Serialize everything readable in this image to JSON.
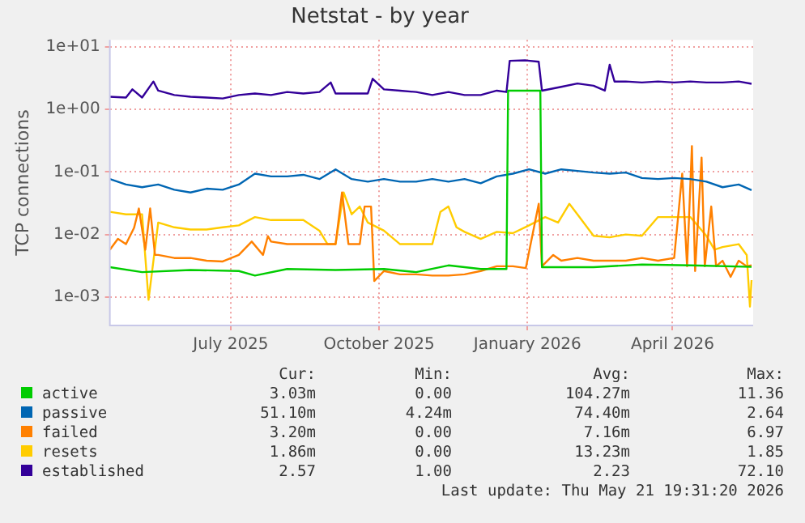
{
  "chart_data": {
    "type": "line",
    "title": "Netstat - by year",
    "ylabel": "TCP connections",
    "log": "y",
    "grid": true,
    "legend": "bottom",
    "marker": "none",
    "line_style": "solid",
    "xlim": [
      "2025-04-17",
      "2026-05-21"
    ],
    "xticks": [
      {
        "value": "2025-07-01",
        "label": "July 2025"
      },
      {
        "value": "2025-10-01",
        "label": "October 2025"
      },
      {
        "value": "2026-01-01",
        "label": "January 2026"
      },
      {
        "value": "2026-04-01",
        "label": "April 2026"
      }
    ],
    "ylim": [
      0.00035,
      13
    ],
    "yticks": [
      {
        "value": 0.001,
        "label": "1e-03"
      },
      {
        "value": 0.01,
        "label": "1e-02"
      },
      {
        "value": 0.1,
        "label": "1e-01"
      },
      {
        "value": 1,
        "label": "1e+00"
      },
      {
        "value": 10,
        "label": "1e+01"
      }
    ],
    "x": [
      "2025-04-17",
      "2025-04-27",
      "2025-05-07",
      "2025-05-17",
      "2025-05-27",
      "2025-06-06",
      "2025-06-16",
      "2025-06-26",
      "2025-07-06",
      "2025-07-16",
      "2025-07-26",
      "2025-08-05",
      "2025-08-15",
      "2025-08-25",
      "2025-09-04",
      "2025-09-14",
      "2025-09-24",
      "2025-10-04",
      "2025-10-14",
      "2025-10-24",
      "2025-11-03",
      "2025-11-13",
      "2025-11-23",
      "2025-12-03",
      "2025-12-13",
      "2025-12-23",
      "2026-01-02",
      "2026-01-12",
      "2026-01-22",
      "2026-02-01",
      "2026-02-11",
      "2026-02-21",
      "2026-03-03",
      "2026-03-13",
      "2026-03-23",
      "2026-04-02",
      "2026-04-12",
      "2026-04-22",
      "2026-05-02",
      "2026-05-12",
      "2026-05-20"
    ],
    "series": [
      {
        "name": "active",
        "color": "#00cc00",
        "x": [
          "2025-04-17",
          "2025-05-07",
          "2025-06-06",
          "2025-07-06",
          "2025-07-16",
          "2025-08-05",
          "2025-09-04",
          "2025-10-04",
          "2025-10-24",
          "2025-11-13",
          "2025-12-03",
          "2025-12-19",
          "2025-12-20",
          "2026-01-09",
          "2026-01-10",
          "2026-02-11",
          "2026-03-13",
          "2026-04-12",
          "2026-05-20"
        ],
        "values": [
          0.003,
          0.0025,
          0.0027,
          0.0026,
          0.0022,
          0.0028,
          0.0027,
          0.0028,
          0.0025,
          0.0032,
          0.0028,
          0.0028,
          2.0,
          2.0,
          0.003,
          0.003,
          0.0033,
          0.0032,
          0.00303
        ]
      },
      {
        "name": "passive",
        "color": "#0066b3",
        "values": [
          0.077,
          0.063,
          0.057,
          0.063,
          0.052,
          0.047,
          0.054,
          0.052,
          0.063,
          0.094,
          0.085,
          0.085,
          0.09,
          0.077,
          0.11,
          0.077,
          0.07,
          0.077,
          0.07,
          0.07,
          0.077,
          0.07,
          0.077,
          0.066,
          0.085,
          0.094,
          0.11,
          0.094,
          0.11,
          0.104,
          0.098,
          0.094,
          0.098,
          0.08,
          0.077,
          0.08,
          0.077,
          0.07,
          0.057,
          0.063,
          0.0511
        ]
      },
      {
        "name": "failed",
        "color": "#ff8000",
        "x": [
          "2025-04-17",
          "2025-04-22",
          "2025-04-27",
          "2025-05-02",
          "2025-05-05",
          "2025-05-09",
          "2025-05-12",
          "2025-05-15",
          "2025-05-17",
          "2025-05-27",
          "2025-06-06",
          "2025-06-16",
          "2025-06-26",
          "2025-07-06",
          "2025-07-14",
          "2025-07-21",
          "2025-07-24",
          "2025-07-26",
          "2025-08-05",
          "2025-08-15",
          "2025-08-25",
          "2025-09-04",
          "2025-09-08",
          "2025-09-12",
          "2025-09-19",
          "2025-09-22",
          "2025-09-26",
          "2025-09-28",
          "2025-10-04",
          "2025-10-14",
          "2025-10-24",
          "2025-11-03",
          "2025-11-13",
          "2025-11-23",
          "2025-12-03",
          "2025-12-13",
          "2025-12-23",
          "2025-12-31",
          "2026-01-08",
          "2026-01-10",
          "2026-01-17",
          "2026-01-22",
          "2026-02-01",
          "2026-02-11",
          "2026-02-21",
          "2026-03-03",
          "2026-03-13",
          "2026-03-23",
          "2026-04-02",
          "2026-04-07",
          "2026-04-10",
          "2026-04-13",
          "2026-04-15",
          "2026-04-19",
          "2026-04-21",
          "2026-04-25",
          "2026-04-28",
          "2026-05-02",
          "2026-05-07",
          "2026-05-12",
          "2026-05-17",
          "2026-05-20"
        ],
        "values": [
          0.0057,
          0.0085,
          0.007,
          0.0127,
          0.026,
          0.0057,
          0.026,
          0.0047,
          0.0047,
          0.0042,
          0.0042,
          0.0038,
          0.0037,
          0.0047,
          0.0077,
          0.0047,
          0.0094,
          0.0077,
          0.007,
          0.007,
          0.007,
          0.007,
          0.047,
          0.007,
          0.007,
          0.028,
          0.028,
          0.0018,
          0.0026,
          0.0023,
          0.0023,
          0.0022,
          0.0022,
          0.0023,
          0.0026,
          0.0031,
          0.0031,
          0.0029,
          0.031,
          0.0031,
          0.0047,
          0.0038,
          0.0042,
          0.0038,
          0.0038,
          0.0038,
          0.0042,
          0.0038,
          0.0042,
          0.094,
          0.0031,
          0.26,
          0.0026,
          0.17,
          0.0031,
          0.028,
          0.0031,
          0.0038,
          0.0021,
          0.0038,
          0.0031,
          0.0032
        ]
      },
      {
        "name": "resets",
        "color": "#ffcc00",
        "x": [
          "2025-04-17",
          "2025-04-27",
          "2025-05-07",
          "2025-05-11",
          "2025-05-17",
          "2025-05-27",
          "2025-06-06",
          "2025-06-16",
          "2025-06-26",
          "2025-07-06",
          "2025-07-16",
          "2025-07-26",
          "2025-08-05",
          "2025-08-15",
          "2025-08-25",
          "2025-08-30",
          "2025-09-04",
          "2025-09-09",
          "2025-09-14",
          "2025-09-19",
          "2025-09-24",
          "2025-10-04",
          "2025-10-14",
          "2025-10-24",
          "2025-11-03",
          "2025-11-08",
          "2025-11-13",
          "2025-11-18",
          "2025-11-23",
          "2025-12-03",
          "2025-12-13",
          "2025-12-23",
          "2026-01-02",
          "2026-01-12",
          "2026-01-20",
          "2026-01-27",
          "2026-02-01",
          "2026-02-11",
          "2026-02-21",
          "2026-03-03",
          "2026-03-13",
          "2026-03-23",
          "2026-04-02",
          "2026-04-12",
          "2026-04-22",
          "2026-04-27",
          "2026-05-02",
          "2026-05-12",
          "2026-05-17",
          "2026-05-19",
          "2026-05-20"
        ],
        "values": [
          0.023,
          0.021,
          0.021,
          0.0009,
          0.0155,
          0.013,
          0.012,
          0.012,
          0.013,
          0.014,
          0.019,
          0.017,
          0.017,
          0.017,
          0.0115,
          0.007,
          0.007,
          0.047,
          0.021,
          0.028,
          0.0155,
          0.0115,
          0.007,
          0.007,
          0.007,
          0.023,
          0.028,
          0.013,
          0.011,
          0.0085,
          0.011,
          0.0105,
          0.014,
          0.019,
          0.0155,
          0.031,
          0.021,
          0.0095,
          0.009,
          0.01,
          0.0095,
          0.019,
          0.019,
          0.019,
          0.0095,
          0.0057,
          0.0063,
          0.007,
          0.0047,
          0.0007,
          0.00186
        ]
      },
      {
        "name": "established",
        "color": "#330099",
        "x": [
          "2025-04-17",
          "2025-04-27",
          "2025-05-01",
          "2025-05-07",
          "2025-05-14",
          "2025-05-17",
          "2025-05-27",
          "2025-06-06",
          "2025-06-16",
          "2025-06-26",
          "2025-07-06",
          "2025-07-16",
          "2025-07-26",
          "2025-08-05",
          "2025-08-15",
          "2025-08-25",
          "2025-09-01",
          "2025-09-04",
          "2025-09-14",
          "2025-09-24",
          "2025-09-27",
          "2025-10-04",
          "2025-10-14",
          "2025-10-24",
          "2025-11-03",
          "2025-11-13",
          "2025-11-23",
          "2025-12-03",
          "2025-12-13",
          "2025-12-19",
          "2025-12-21",
          "2025-12-31",
          "2026-01-08",
          "2026-01-10",
          "2026-01-22",
          "2026-02-01",
          "2026-02-11",
          "2026-02-18",
          "2026-02-21",
          "2026-02-24",
          "2026-03-03",
          "2026-03-13",
          "2026-03-23",
          "2026-04-02",
          "2026-04-12",
          "2026-04-22",
          "2026-05-02",
          "2026-05-12",
          "2026-05-20"
        ],
        "values": [
          1.6,
          1.55,
          2.1,
          1.55,
          2.8,
          2.0,
          1.7,
          1.6,
          1.55,
          1.5,
          1.7,
          1.8,
          1.7,
          1.9,
          1.8,
          1.9,
          2.7,
          1.8,
          1.8,
          1.8,
          3.1,
          2.1,
          2.0,
          1.9,
          1.7,
          1.9,
          1.7,
          1.7,
          2.0,
          1.9,
          6.0,
          6.1,
          5.8,
          2.0,
          2.3,
          2.6,
          2.4,
          2.0,
          5.2,
          2.8,
          2.8,
          2.7,
          2.8,
          2.7,
          2.8,
          2.7,
          2.7,
          2.8,
          2.57
        ]
      }
    ],
    "annotations": [
      "Cur:",
      "Min:",
      "Avg:",
      "Max:",
      "3.03m",
      "0.00",
      "104.27m",
      "11.36",
      "51.10m",
      "4.24m",
      "74.40m",
      "2.64",
      "3.20m",
      "0.00",
      "7.16m",
      "6.97",
      "1.86m",
      "0.00",
      "13.23m",
      "1.85",
      "2.57",
      "1.00",
      "2.23",
      "72.10",
      "Last update: Thu May 21 19:31:20 2026"
    ]
  }
}
